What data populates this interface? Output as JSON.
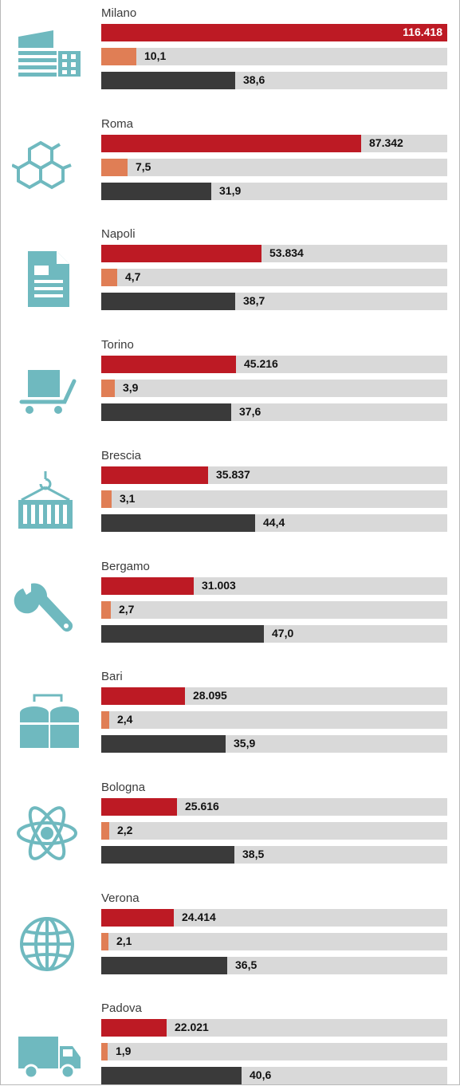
{
  "colors": {
    "population": "#bd1a24",
    "share": "#e07e55",
    "third": "#3a3a3a",
    "track": "#d9d9d9",
    "icon": "#6fb9bf"
  },
  "chart_data": {
    "type": "bar",
    "categories": [
      "Milano",
      "Roma",
      "Napoli",
      "Torino",
      "Brescia",
      "Bergamo",
      "Bari",
      "Bologna",
      "Verona",
      "Padova"
    ],
    "series": [
      {
        "values": [
          116418,
          87342,
          53834,
          45216,
          35837,
          31003,
          28095,
          25616,
          24414,
          22021
        ],
        "labels": [
          "116.418",
          "87.342",
          "53.834",
          "45.216",
          "35.837",
          "31.003",
          "28.095",
          "25.616",
          "24.414",
          "22.021"
        ],
        "max": 116418
      },
      {
        "values": [
          10.1,
          7.5,
          4.7,
          3.9,
          3.1,
          2.7,
          2.4,
          2.2,
          2.1,
          1.9
        ],
        "labels": [
          "10,1",
          "7,5",
          "4,7",
          "3,9",
          "3,1",
          "2,7",
          "2,4",
          "2,2",
          "2,1",
          "1,9"
        ],
        "max": 100
      },
      {
        "values": [
          38.6,
          31.9,
          38.7,
          37.6,
          44.4,
          47.0,
          35.9,
          38.5,
          36.5,
          40.6
        ],
        "labels": [
          "38,6",
          "31,9",
          "38,7",
          "37,6",
          "44,4",
          "47,0",
          "35,9",
          "38,5",
          "36,5",
          "40,6"
        ],
        "max": 100
      }
    ],
    "icons": [
      "factory-icon",
      "molecule-icon",
      "document-icon",
      "cart-icon",
      "container-icon",
      "wrench-icon",
      "silos-icon",
      "atom-icon",
      "globe-icon",
      "truck-icon"
    ],
    "legend": "none",
    "grid": false
  }
}
